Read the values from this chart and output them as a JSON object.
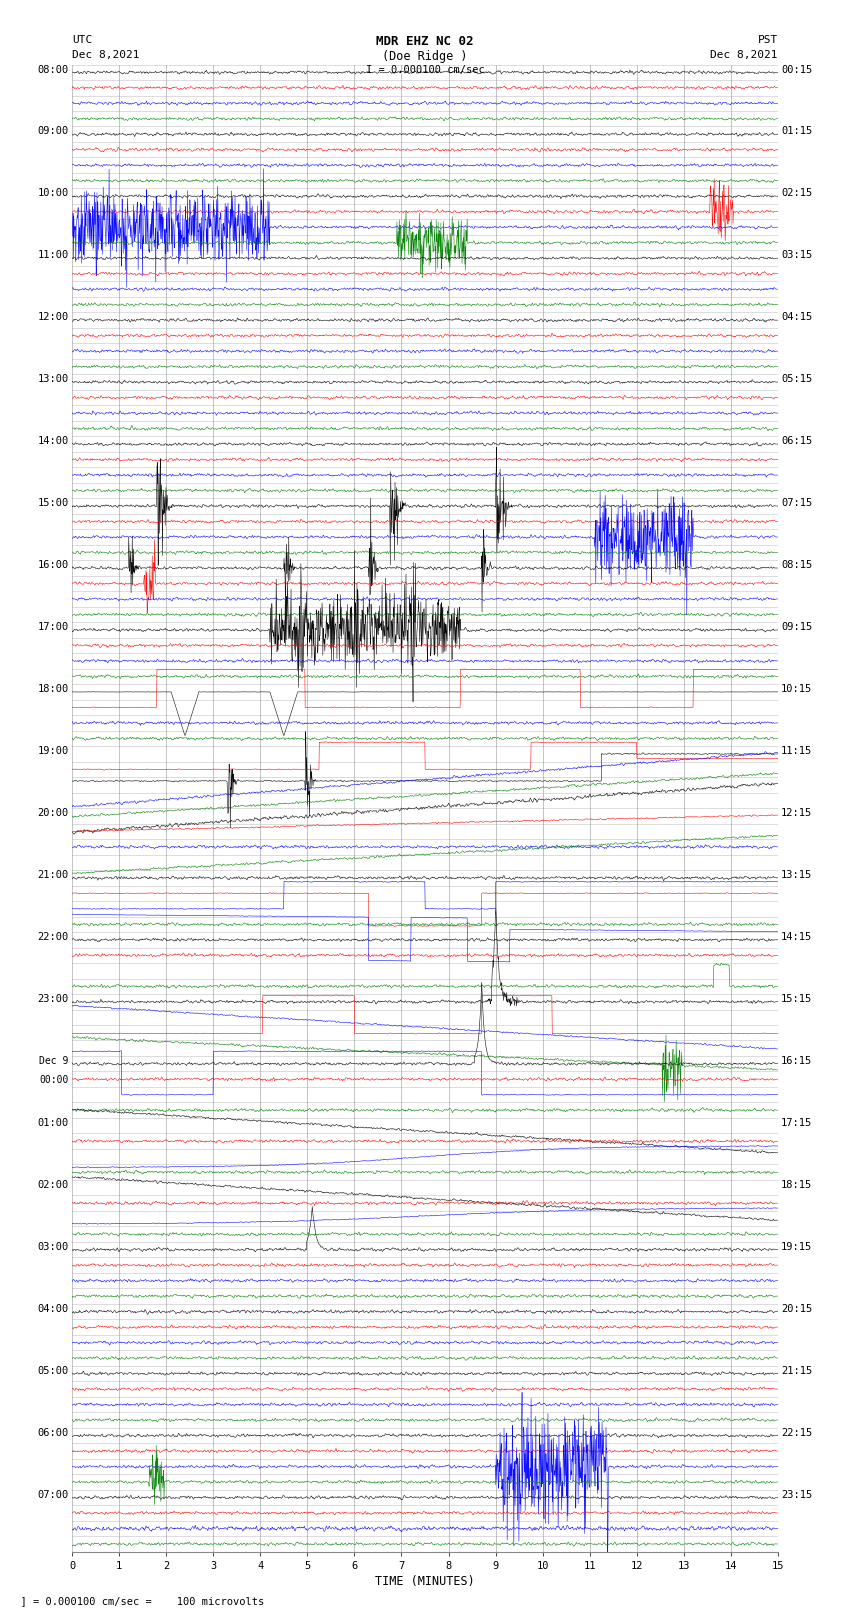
{
  "title_line1": "MDR EHZ NC 02",
  "title_line2": "(Doe Ridge )",
  "scale_text": "I = 0.000100 cm/sec",
  "utc_label": "UTC",
  "utc_date": "Dec 8,2021",
  "pst_label": "PST",
  "pst_date": "Dec 8,2021",
  "xlabel": "TIME (MINUTES)",
  "footnote": "= 0.000100 cm/sec =    100 microvolts",
  "left_times_utc": [
    "08:00",
    "09:00",
    "10:00",
    "11:00",
    "12:00",
    "13:00",
    "14:00",
    "15:00",
    "16:00",
    "17:00",
    "18:00",
    "19:00",
    "20:00",
    "21:00",
    "22:00",
    "23:00",
    "Dec 9\n00:00",
    "01:00",
    "02:00",
    "03:00",
    "04:00",
    "05:00",
    "06:00",
    "07:00"
  ],
  "right_times_pst": [
    "00:15",
    "01:15",
    "02:15",
    "03:15",
    "04:15",
    "05:15",
    "06:15",
    "07:15",
    "08:15",
    "09:15",
    "10:15",
    "11:15",
    "12:15",
    "13:15",
    "14:15",
    "15:15",
    "16:15",
    "17:15",
    "18:15",
    "19:15",
    "20:15",
    "21:15",
    "22:15",
    "23:15"
  ],
  "n_rows": 24,
  "n_minutes": 15,
  "colors": [
    "black",
    "red",
    "blue",
    "green"
  ],
  "bg_color": "#ffffff",
  "grid_color": "#888888",
  "text_color": "#000000",
  "figsize": [
    8.5,
    16.13
  ],
  "dpi": 100
}
